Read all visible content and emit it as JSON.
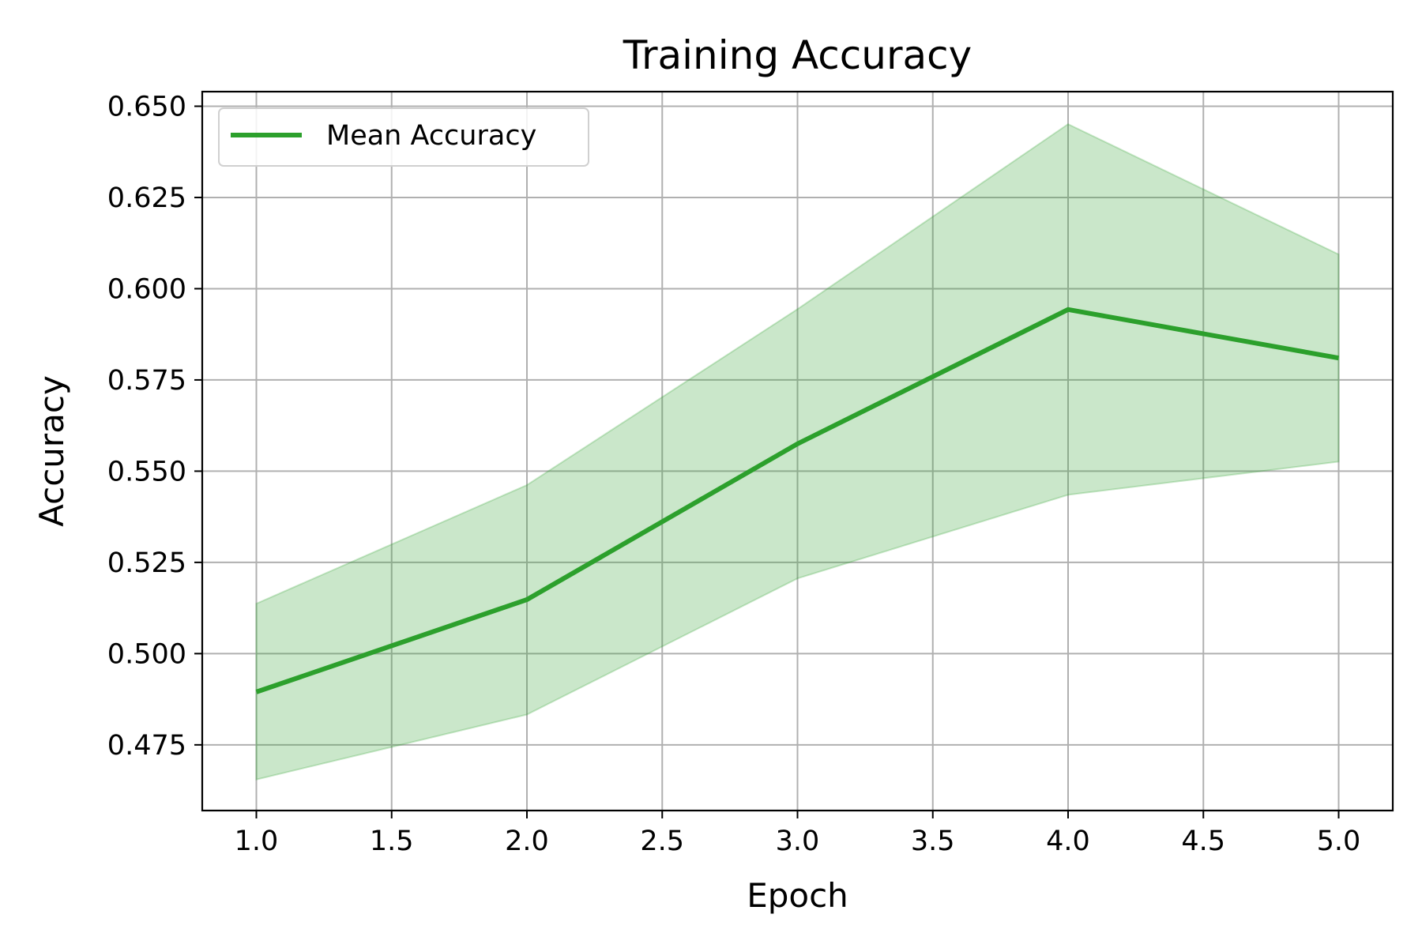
{
  "chart_data": {
    "type": "line",
    "title": "Training Accuracy",
    "xlabel": "Epoch",
    "ylabel": "Accuracy",
    "xlim": [
      0.8,
      5.2
    ],
    "ylim": [
      0.457,
      0.654
    ],
    "xticks": [
      1.0,
      1.5,
      2.0,
      2.5,
      3.0,
      3.5,
      4.0,
      4.5,
      5.0
    ],
    "xtick_labels": [
      "1.0",
      "1.5",
      "2.0",
      "2.5",
      "3.0",
      "3.5",
      "4.0",
      "4.5",
      "5.0"
    ],
    "yticks": [
      0.475,
      0.5,
      0.525,
      0.55,
      0.575,
      0.6,
      0.625,
      0.65
    ],
    "ytick_labels": [
      "0.475",
      "0.500",
      "0.525",
      "0.550",
      "0.575",
      "0.600",
      "0.625",
      "0.650"
    ],
    "grid": true,
    "legend_position": "top-left",
    "x": [
      1,
      2,
      3,
      4,
      5
    ],
    "series": [
      {
        "name": "Mean Accuracy",
        "values": [
          0.4895,
          0.5148,
          0.5575,
          0.5943,
          0.581
        ],
        "color": "#2ca02c"
      }
    ],
    "band": {
      "upper": [
        0.5137,
        0.5462,
        0.5944,
        0.6451,
        0.6094
      ],
      "lower": [
        0.4655,
        0.4833,
        0.5206,
        0.5435,
        0.5526
      ],
      "color": "#2ca02c",
      "opacity": 0.25
    }
  }
}
